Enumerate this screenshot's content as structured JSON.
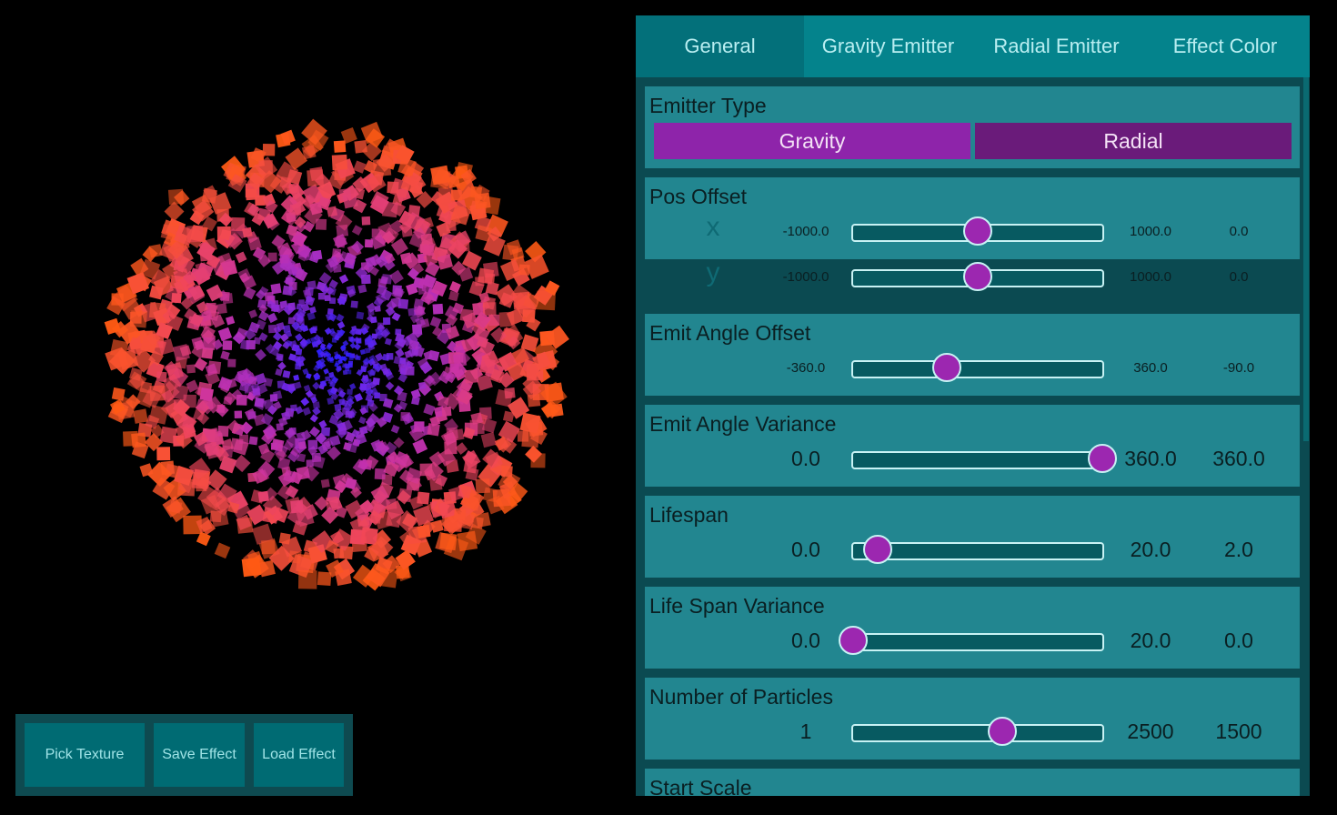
{
  "toolbar": {
    "pick_texture": "Pick Texture",
    "save_effect": "Save Effect",
    "load_effect": "Load Effect"
  },
  "tabs": [
    {
      "label": "General",
      "active": true
    },
    {
      "label": "Gravity Emitter",
      "active": false
    },
    {
      "label": "Radial Emitter",
      "active": false
    },
    {
      "label": "Effect Color",
      "active": false
    }
  ],
  "emitter_type": {
    "title": "Emitter Type",
    "options": [
      "Gravity",
      "Radial"
    ],
    "selected": "Gravity"
  },
  "pos_offset": {
    "title": "Pos Offset",
    "x": {
      "label": "x",
      "min": "-1000.0",
      "max": "1000.0",
      "value": "0.0",
      "fraction": 0.5
    },
    "y": {
      "label": "y",
      "min": "-1000.0",
      "max": "1000.0",
      "value": "0.0",
      "fraction": 0.5
    }
  },
  "emit_angle_offset": {
    "title": "Emit Angle Offset",
    "min": "-360.0",
    "max": "360.0",
    "value": "-90.0",
    "fraction": 0.375
  },
  "emit_angle_variance": {
    "title": "Emit Angle Variance",
    "min": "0.0",
    "max": "360.0",
    "value": "360.0",
    "fraction": 1.0
  },
  "lifespan": {
    "title": "Lifespan",
    "min": "0.0",
    "max": "20.0",
    "value": "2.0",
    "fraction": 0.1
  },
  "life_span_variance": {
    "title": "Life Span Variance",
    "min": "0.0",
    "max": "20.0",
    "value": "0.0",
    "fraction": 0.0
  },
  "number_of_particles": {
    "title": "Number of Particles",
    "min": "1",
    "max": "2500",
    "value": "1500",
    "fraction": 0.6
  },
  "start_scale": {
    "title": "Start Scale"
  },
  "colors": {
    "accent": "#9c27b0",
    "panel": "#228690",
    "tab_bar": "#04838c"
  }
}
